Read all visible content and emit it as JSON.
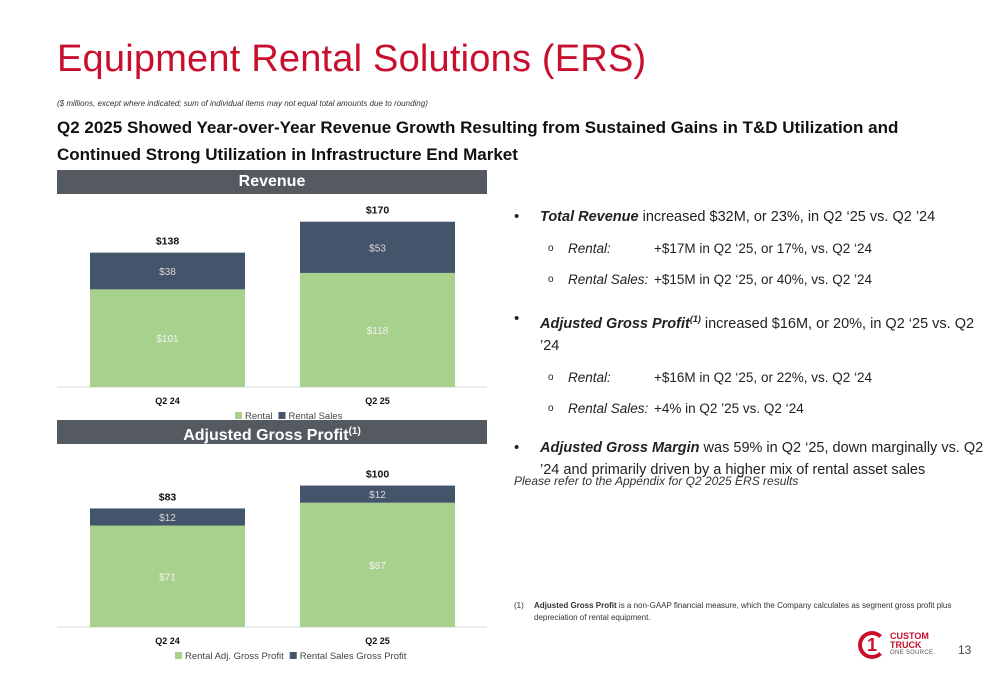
{
  "title": "Equipment Rental Solutions (ERS)",
  "subnote": "($ millions, except where indicated; sum of individual items may not equal total amounts due to rounding)",
  "headline": "Q2 2025 Showed Year-over-Year Revenue Growth Resulting from Sustained Gains in T&D Utilization and Continued Strong Utilization in Infrastructure End Market",
  "revenue_header": "Revenue",
  "gp_header": "Adjusted Gross Profit",
  "gp_header_sup": "(1)",
  "colors": {
    "light": "#a9d18e",
    "dark": "#44546a",
    "header": "#555a60",
    "accent": "#c8102e"
  },
  "chart_data": [
    {
      "type": "bar",
      "stacked": true,
      "title": "Revenue",
      "categories": [
        "Q2 24",
        "Q2 25"
      ],
      "series": [
        {
          "name": "Rental",
          "values": [
            101,
            118
          ],
          "labels": [
            "$101",
            "$118"
          ]
        },
        {
          "name": "Rental Sales",
          "values": [
            38,
            53
          ],
          "labels": [
            "$38",
            "$53"
          ]
        }
      ],
      "totals": [
        138,
        170
      ],
      "total_labels": [
        "$138",
        "$170"
      ],
      "ylim": [
        0,
        180
      ],
      "legend": "bottom",
      "grid": false
    },
    {
      "type": "bar",
      "stacked": true,
      "title": "Adjusted Gross Profit(1)",
      "categories": [
        "Q2 24",
        "Q2 25"
      ],
      "series": [
        {
          "name": "Rental Adj. Gross Profit",
          "values": [
            71,
            87
          ],
          "labels": [
            "$71",
            "$87"
          ]
        },
        {
          "name": "Rental Sales Gross Profit",
          "values": [
            12,
            12
          ],
          "labels": [
            "$12",
            "$12"
          ]
        }
      ],
      "totals": [
        83,
        100
      ],
      "total_labels": [
        "$83",
        "$100"
      ],
      "ylim": [
        0,
        105
      ],
      "legend": "bottom",
      "grid": false
    }
  ],
  "bullets": [
    {
      "lead": "Total Revenue",
      "sup": "",
      "rest": " increased $32M, or 23%, in Q2 ‘25 vs. Q2 ’24",
      "subs": [
        {
          "label": "Rental:",
          "text": "+$17M in Q2 ‘25, or 17%, vs. Q2 ‘24"
        },
        {
          "label": "Rental Sales:",
          "text": "+$15M in Q2 ‘25, or 40%, vs. Q2 ’24"
        }
      ]
    },
    {
      "lead": "Adjusted Gross Profit",
      "sup": "(1)",
      "rest": " increased $16M, or 20%, in Q2 ‘25 vs. Q2 ’24",
      "subs": [
        {
          "label": "Rental:",
          "text": "+$16M in Q2 ‘25, or 22%, vs. Q2 ‘24"
        },
        {
          "label": "Rental Sales:",
          "text": "+4% in Q2 ’25 vs. Q2 ‘24"
        }
      ]
    },
    {
      "lead": "Adjusted Gross Margin",
      "sup": "",
      "rest": " was 59% in Q2 ‘25, down marginally vs. Q2 ’24 and primarily driven by a higher mix of rental asset sales",
      "subs": []
    }
  ],
  "appendix_note": "Please refer to the Appendix for Q2 2025 ERS results",
  "footnote": {
    "num": "(1)",
    "bold": "Adjusted Gross Profit",
    "rest": " is a non-GAAP financial measure, which the Company calculates as segment gross profit plus depreciation of rental equipment."
  },
  "logo": {
    "line1": "CUSTOM",
    "line2": "TRUCK",
    "tagline": "ONE SOURCE.",
    "mark": "1"
  },
  "page_number": "13"
}
